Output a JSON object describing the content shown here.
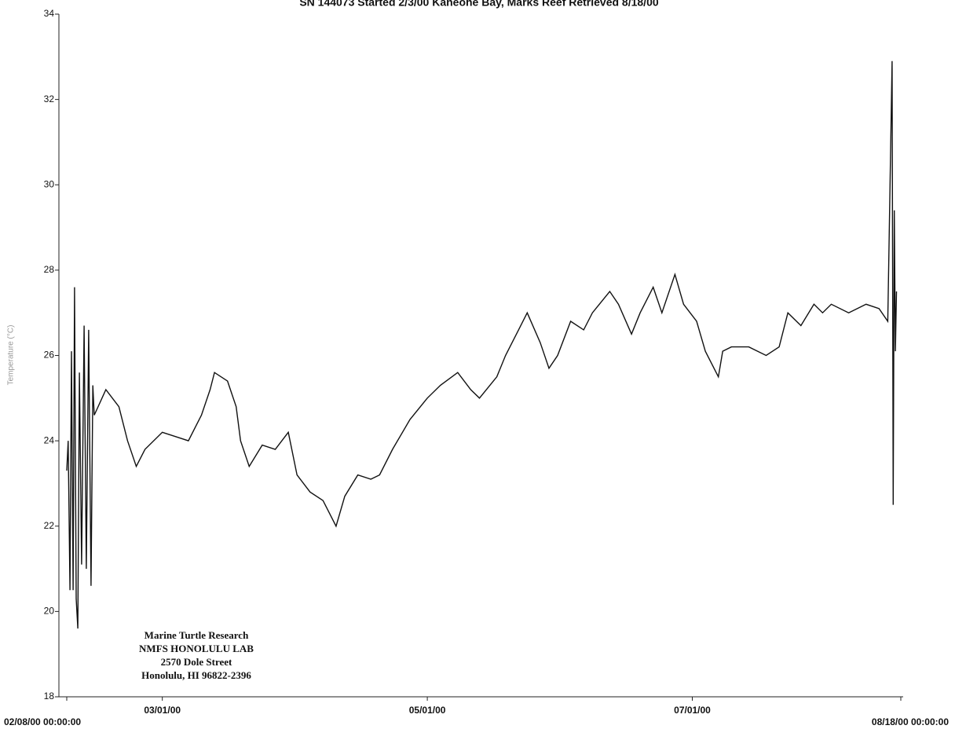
{
  "chart_data": {
    "type": "line",
    "title": "SN 144073 Started 2/3/00 Kaneohe Bay, Marks Reef Retrieved 8/18/00",
    "y_label": "Temperature (°C)",
    "annotation": [
      "Marine Turtle Research",
      "NMFS HONOLULU LAB",
      "2570 Dole Street",
      "Honolulu, HI 96822-2396"
    ],
    "xlim": [
      "02/08/00 00:00:00",
      "08/18/00 00:00:00"
    ],
    "xticks": [
      "02/08/00 00:00:00",
      "03/01/00",
      "05/01/00",
      "07/01/00",
      "08/18/00 00:00:00"
    ],
    "ylim": [
      18,
      34
    ],
    "yticks": [
      18,
      20,
      22,
      24,
      26,
      28,
      30,
      32,
      34
    ],
    "series": [
      {
        "color": "#111111",
        "x": [
          "02/08/00 00:00:00",
          "02/08/00 08:00:00",
          "02/08/00 18:00:00",
          "02/09/00 02:00:00",
          "02/09/00 11:00:00",
          "02/09/00 19:00:00",
          "02/10/00 04:00:00",
          "02/10/00 13:00:00",
          "02/10/00 22:00:00",
          "02/11/00 10:00:00",
          "02/12/00 00:00:00",
          "02/12/00 12:00:00",
          "02/13/00 01:00:00",
          "02/13/00 14:00:00",
          "02/14/00 00:00:00",
          "02/14/00 08:00:00",
          "02/17/00 00:00:00",
          "02/20/00 00:00:00",
          "02/22/00 00:00:00",
          "02/24/00 00:00:00",
          "02/26/00 00:00:00",
          "03/01/00 00:00:00",
          "03/04/00 00:00:00",
          "03/07/00 00:00:00",
          "03/09/00 00:00:00",
          "03/10/00 00:00:00",
          "03/12/00 00:00:00",
          "03/13/00 00:00:00",
          "03/16/00 00:00:00",
          "03/18/00 00:00:00",
          "03/19/00 00:00:00",
          "03/21/00 00:00:00",
          "03/24/00 00:00:00",
          "03/27/00 00:00:00",
          "03/30/00 00:00:00",
          "04/01/00 00:00:00",
          "04/04/00 00:00:00",
          "04/07/00 00:00:00",
          "04/10/00 00:00:00",
          "04/12/00 00:00:00",
          "04/15/00 00:00:00",
          "04/18/00 00:00:00",
          "04/20/00 00:00:00",
          "04/23/00 00:00:00",
          "04/27/00 00:00:00",
          "05/01/00 00:00:00",
          "05/04/00 00:00:00",
          "05/08/00 00:00:00",
          "05/11/00 00:00:00",
          "05/13/00 00:00:00",
          "05/17/00 00:00:00",
          "05/19/00 00:00:00",
          "05/22/00 00:00:00",
          "05/24/00 00:00:00",
          "05/27/00 00:00:00",
          "05/29/00 00:00:00",
          "05/31/00 00:00:00",
          "06/03/00 00:00:00",
          "06/06/00 00:00:00",
          "06/08/00 00:00:00",
          "06/12/00 00:00:00",
          "06/14/00 00:00:00",
          "06/17/00 00:00:00",
          "06/19/00 00:00:00",
          "06/22/00 00:00:00",
          "06/24/00 00:00:00",
          "06/27/00 00:00:00",
          "06/29/00 00:00:00",
          "07/02/00 00:00:00",
          "07/04/00 00:00:00",
          "07/07/00 00:00:00",
          "07/08/00 00:00:00",
          "07/10/00 00:00:00",
          "07/14/00 00:00:00",
          "07/18/00 00:00:00",
          "07/21/00 00:00:00",
          "07/23/00 00:00:00",
          "07/26/00 00:00:00",
          "07/29/00 00:00:00",
          "07/31/00 00:00:00",
          "08/02/00 00:00:00",
          "08/06/00 00:00:00",
          "08/10/00 00:00:00",
          "08/13/00 00:00:00",
          "08/15/00 00:00:00",
          "08/16/00 00:00:00",
          "08/16/00 06:00:00",
          "08/16/00 12:00:00",
          "08/16/00 18:00:00",
          "08/17/00 00:00:00"
        ],
        "values": [
          23.3,
          24.0,
          20.5,
          26.1,
          20.5,
          27.6,
          20.3,
          19.6,
          25.6,
          21.1,
          26.7,
          21.0,
          26.6,
          20.6,
          25.3,
          24.6,
          25.2,
          24.8,
          24.0,
          23.4,
          23.8,
          24.2,
          24.1,
          24.0,
          24.4,
          24.6,
          25.2,
          25.6,
          25.4,
          24.8,
          24.0,
          23.4,
          23.9,
          23.8,
          24.2,
          23.2,
          22.8,
          22.6,
          22.0,
          22.7,
          23.2,
          23.1,
          23.2,
          23.8,
          24.5,
          25.0,
          25.3,
          25.6,
          25.2,
          25.0,
          25.5,
          26.0,
          26.6,
          27.0,
          26.3,
          25.7,
          26.0,
          26.8,
          26.6,
          27.0,
          27.5,
          27.2,
          26.5,
          27.0,
          27.6,
          27.0,
          27.9,
          27.2,
          26.8,
          26.1,
          25.5,
          26.1,
          26.2,
          26.2,
          26.0,
          26.2,
          27.0,
          26.7,
          27.2,
          27.0,
          27.2,
          27.0,
          27.2,
          27.1,
          26.8,
          32.9,
          22.5,
          29.4,
          26.1,
          27.5
        ]
      }
    ]
  }
}
